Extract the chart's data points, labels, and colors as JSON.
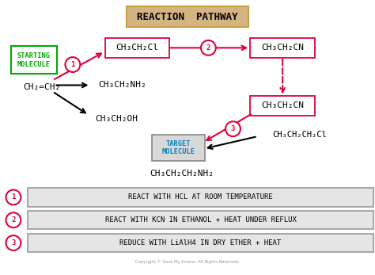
{
  "title": "REACTION  PATHWAY",
  "title_box_color": "#d4b483",
  "title_box_edge": "#c8a040",
  "background_color": "#ffffff",
  "starting_label": "STARTING\nMOLECULE",
  "target_label": "TARGET\nMOLECULE",
  "molecules": {
    "ethene": "CH₂=CH₂",
    "chloroethane": "CH₃CH₂Cl",
    "ethylamine": "CH₃CH₂NH₂",
    "ethanol": "CH₃CH₂OH",
    "ethanenitrile": "CH₃CH₂CN",
    "ethanenitrile2": "CH₃CH₂CN",
    "chloropropane": "CH₃CH₂CH₂Cl",
    "propylamine": "CH₃CH₂CH₂NH₂"
  },
  "steps": [
    {
      "num": "1",
      "text": "REACT WITH HCL AT ROOM TEMPERATURE"
    },
    {
      "num": "2",
      "text": "REACT WITH KCN IN ETHANOL + HEAT UNDER REFLUX"
    },
    {
      "num": "3",
      "text": "REDUCE WITH LiAlH4 IN DRY ETHER + HEAT"
    }
  ],
  "red": "#e0003c",
  "black": "#000000",
  "green": "#00aa00",
  "blue": "#0080c0"
}
